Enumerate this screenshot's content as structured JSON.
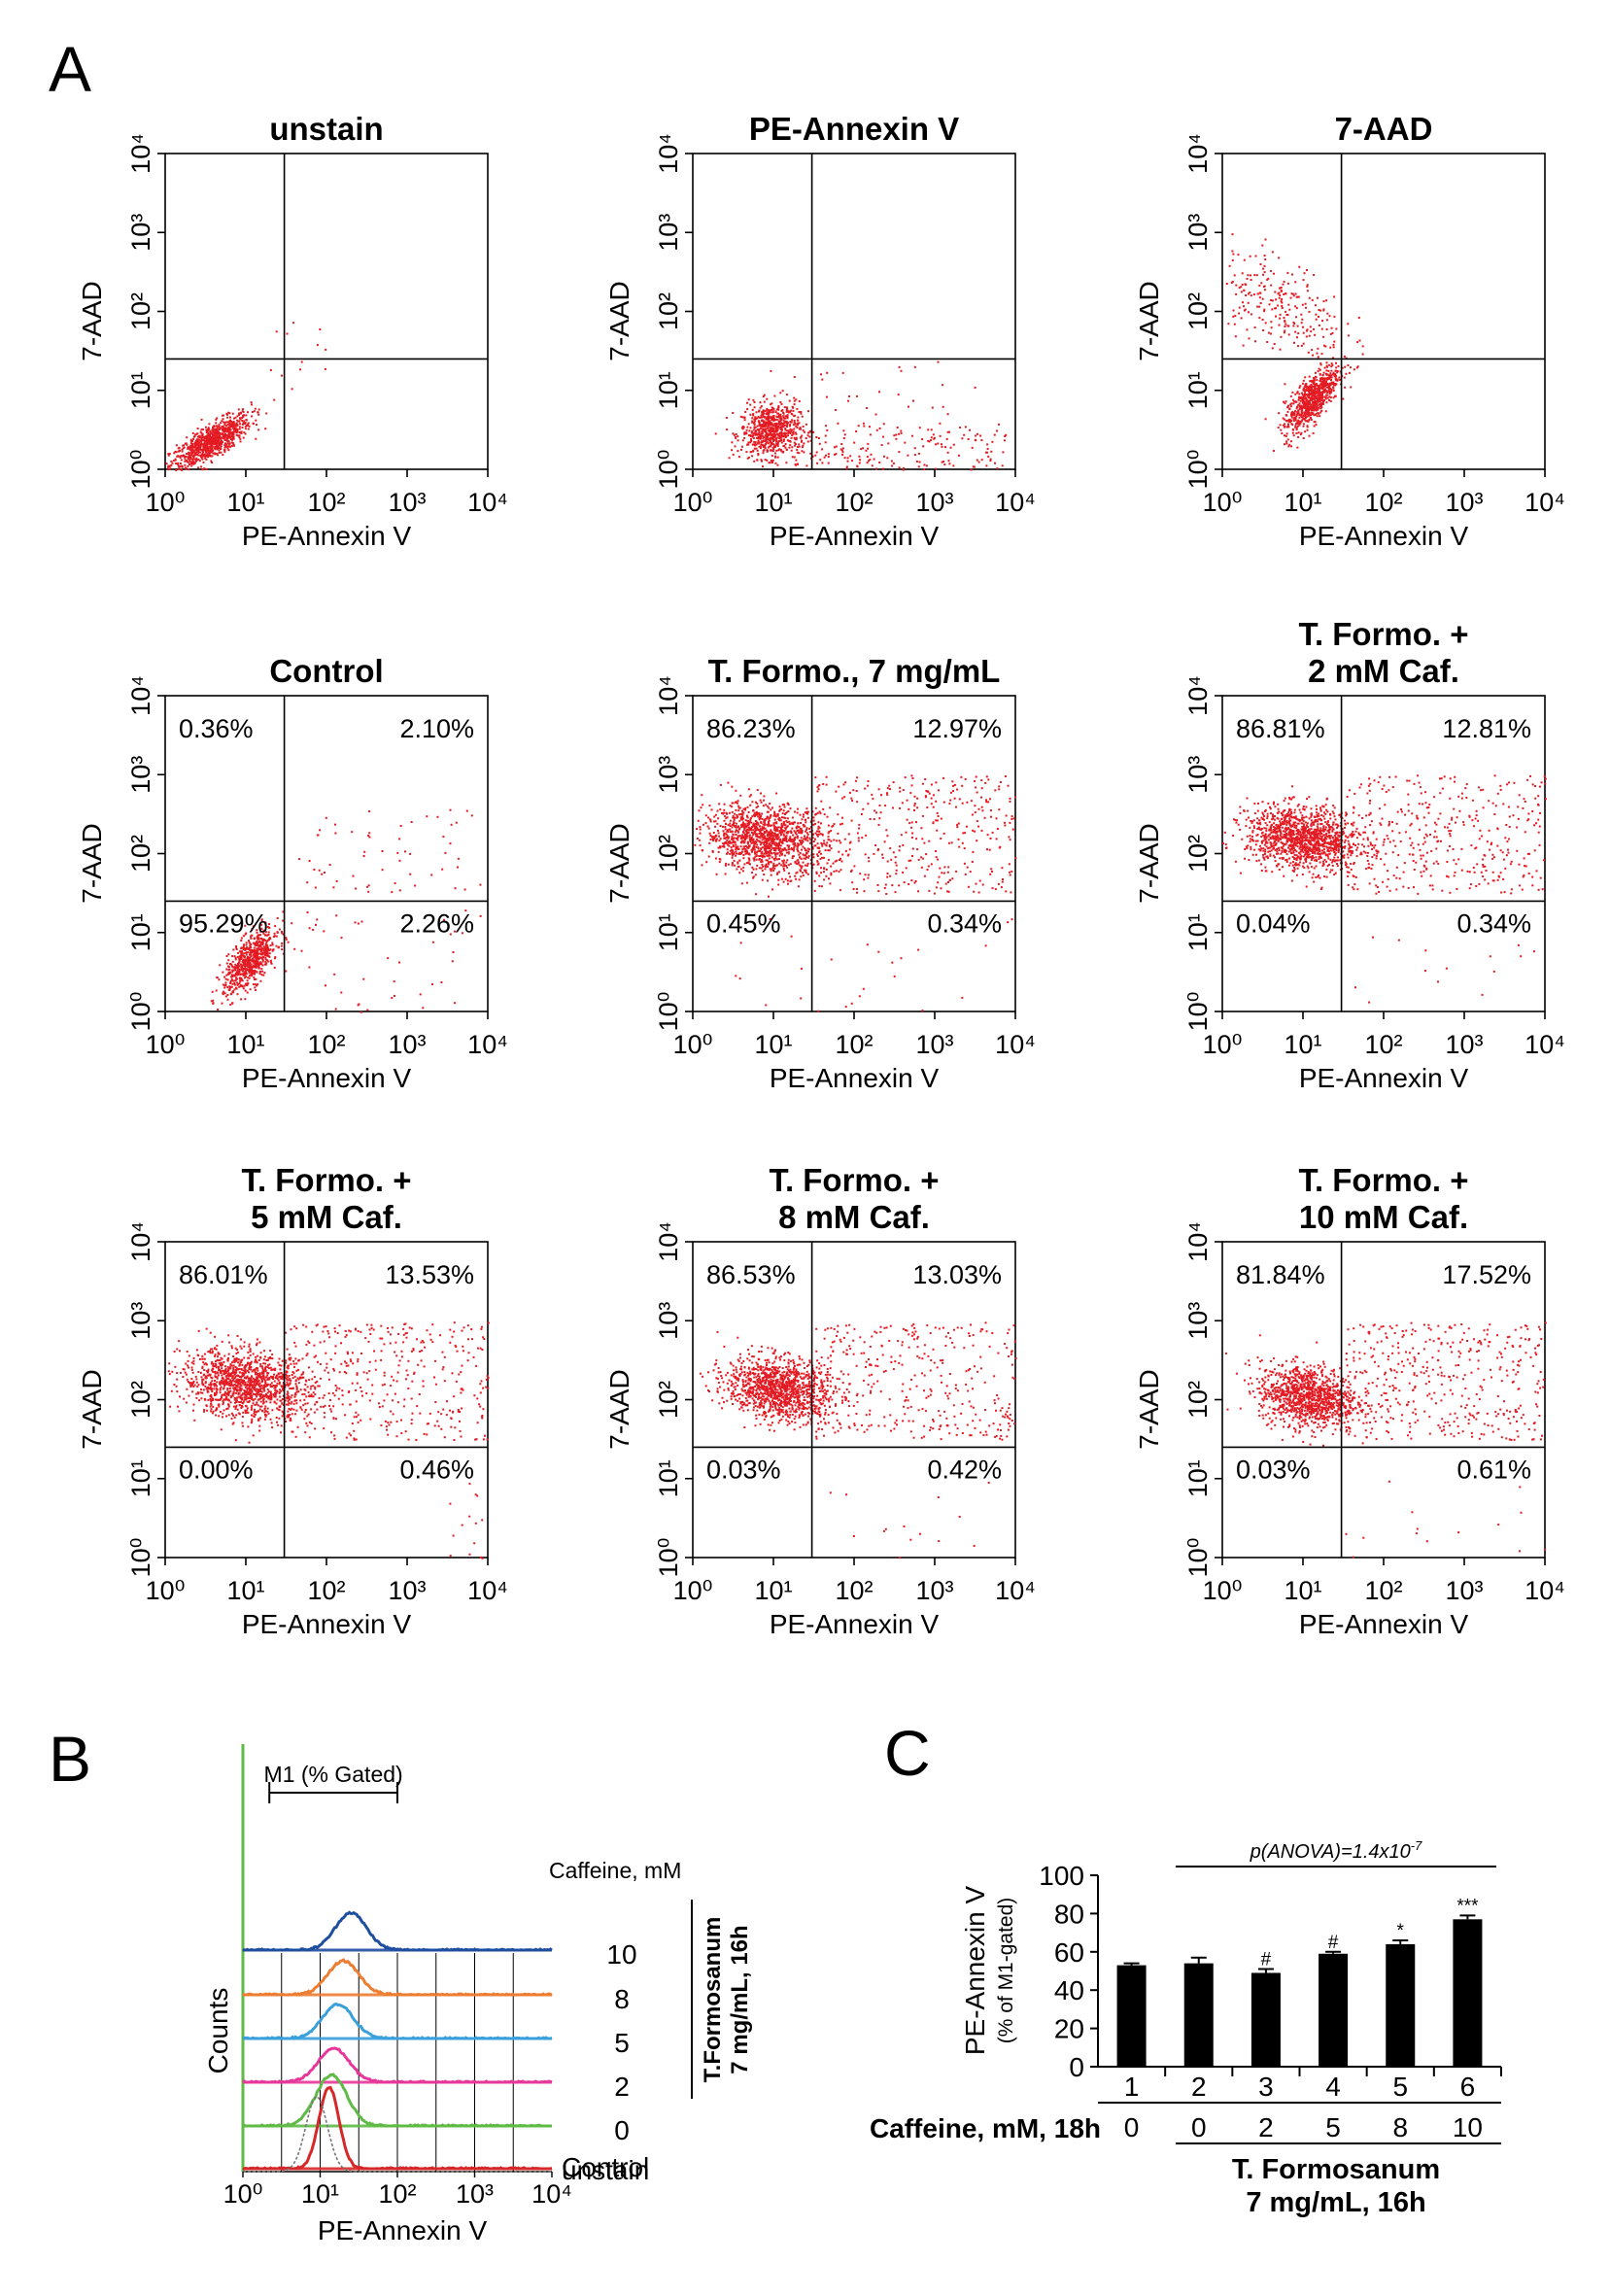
{
  "figure": {
    "panel_letters": [
      "A",
      "B",
      "C"
    ]
  },
  "chart_data": [
    {
      "type": "scatter",
      "panel": "A",
      "plot_type": "flow cytometry dot plots (3 x 3 grid)",
      "xlabel": "PE-Annexin V",
      "ylabel": "7-AAD",
      "x_scale": "log",
      "y_scale": "log",
      "xlim": [
        1,
        10000
      ],
      "ylim": [
        1,
        10000
      ],
      "tick_labels": [
        "10⁰",
        "10¹",
        "10²",
        "10³",
        "10⁴"
      ],
      "gate": {
        "x": 30,
        "y": 25
      },
      "point_color": "#e31b23",
      "subplots": [
        {
          "title": [
            "unstain"
          ],
          "quadrants": null,
          "clusters": [
            {
              "cx": 0.55,
              "cy": 0.35,
              "sx": 0.25,
              "sy": 0.18,
              "rho": 0.8,
              "n": 900
            }
          ],
          "sparse": [
            {
              "x": [
                1.0,
                2.0
              ],
              "y": [
                1.0,
                2.0
              ],
              "n": 12
            }
          ]
        },
        {
          "title": [
            "PE-Annexin V"
          ],
          "quadrants": null,
          "clusters": [
            {
              "cx": 0.95,
              "cy": 0.5,
              "sx": 0.18,
              "sy": 0.17,
              "rho": 0.1,
              "n": 700
            }
          ],
          "sparse": [
            {
              "x": [
                1.2,
                3.9
              ],
              "y": [
                0.0,
                0.6
              ],
              "n": 200
            },
            {
              "x": [
                0.9,
                3.5
              ],
              "y": [
                0.7,
                1.4
              ],
              "n": 30
            }
          ]
        },
        {
          "title": [
            "7-AAD"
          ],
          "quadrants": null,
          "clusters": [
            {
              "cx": 1.1,
              "cy": 0.9,
              "sx": 0.17,
              "sy": 0.22,
              "rho": 0.75,
              "n": 750
            },
            {
              "cx": 0.7,
              "cy": 2.1,
              "sx": 0.4,
              "sy": 0.35,
              "rho": -0.5,
              "n": 260
            }
          ],
          "sparse": []
        },
        {
          "title": [
            "Control"
          ],
          "quadrants": [
            "0.36%",
            "2.10%",
            "95.29%",
            "2.26%"
          ],
          "clusters": [
            {
              "cx": 1.05,
              "cy": 0.65,
              "sx": 0.17,
              "sy": 0.2,
              "rho": 0.65,
              "n": 700
            }
          ],
          "sparse": [
            {
              "x": [
                1.6,
                3.9
              ],
              "y": [
                1.5,
                2.6
              ],
              "n": 60
            },
            {
              "x": [
                1.6,
                3.9
              ],
              "y": [
                0.0,
                1.3
              ],
              "n": 40
            }
          ]
        },
        {
          "title": [
            "T. Formo., 7 mg/mL"
          ],
          "quadrants": [
            "86.23%",
            "12.97%",
            "0.45%",
            "0.34%"
          ],
          "clusters": [
            {
              "cx": 0.9,
              "cy": 2.2,
              "sx": 0.38,
              "sy": 0.22,
              "rho": -0.2,
              "n": 1300
            }
          ],
          "sparse": [
            {
              "x": [
                1.5,
                4.0
              ],
              "y": [
                1.5,
                3.0
              ],
              "n": 380
            },
            {
              "x": [
                0.5,
                4.0
              ],
              "y": [
                0.0,
                1.3
              ],
              "n": 25
            }
          ]
        },
        {
          "title": [
            "T. Formo. +",
            "2 mM Caf."
          ],
          "quadrants": [
            "86.81%",
            "12.81%",
            "0.04%",
            "0.34%"
          ],
          "clusters": [
            {
              "cx": 1.0,
              "cy": 2.2,
              "sx": 0.35,
              "sy": 0.2,
              "rho": -0.2,
              "n": 1300
            }
          ],
          "sparse": [
            {
              "x": [
                1.5,
                4.0
              ],
              "y": [
                1.5,
                3.0
              ],
              "n": 380
            },
            {
              "x": [
                1.5,
                4.0
              ],
              "y": [
                0.0,
                1.0
              ],
              "n": 14
            }
          ]
        },
        {
          "title": [
            "T. Formo. +",
            "5 mM Caf."
          ],
          "quadrants": [
            "86.01%",
            "13.53%",
            "0.00%",
            "0.46%"
          ],
          "clusters": [
            {
              "cx": 1.0,
              "cy": 2.2,
              "sx": 0.4,
              "sy": 0.22,
              "rho": -0.2,
              "n": 1300
            }
          ],
          "sparse": [
            {
              "x": [
                1.5,
                4.0
              ],
              "y": [
                1.5,
                3.0
              ],
              "n": 380
            },
            {
              "x": [
                3.5,
                4.0
              ],
              "y": [
                0.0,
                1.0
              ],
              "n": 14
            }
          ]
        },
        {
          "title": [
            "T. Formo. +",
            "8 mM Caf."
          ],
          "quadrants": [
            "86.53%",
            "13.03%",
            "0.03%",
            "0.42%"
          ],
          "clusters": [
            {
              "cx": 1.05,
              "cy": 2.15,
              "sx": 0.32,
              "sy": 0.2,
              "rho": -0.2,
              "n": 1200
            }
          ],
          "sparse": [
            {
              "x": [
                1.5,
                4.0
              ],
              "y": [
                1.5,
                3.0
              ],
              "n": 360
            },
            {
              "x": [
                1.5,
                4.0
              ],
              "y": [
                0.0,
                1.0
              ],
              "n": 14
            }
          ]
        },
        {
          "title": [
            "T. Formo. +",
            "10 mM Caf."
          ],
          "quadrants": [
            "81.84%",
            "17.52%",
            "0.03%",
            "0.61%"
          ],
          "clusters": [
            {
              "cx": 1.05,
              "cy": 2.05,
              "sx": 0.3,
              "sy": 0.2,
              "rho": -0.2,
              "n": 1100
            }
          ],
          "sparse": [
            {
              "x": [
                1.5,
                4.0
              ],
              "y": [
                1.5,
                3.0
              ],
              "n": 420
            },
            {
              "x": [
                1.5,
                4.0
              ],
              "y": [
                0.0,
                1.0
              ],
              "n": 14
            }
          ]
        }
      ]
    },
    {
      "type": "line",
      "panel": "B",
      "plot_type": "overlaid flow histograms",
      "xlabel": "PE-Annexin V",
      "ylabel": "Counts",
      "x_scale": "log",
      "xlim": [
        1,
        10000
      ],
      "tick_labels": [
        "10⁰",
        "10¹",
        "10²",
        "10³",
        "10⁴"
      ],
      "gate_label": "M1 (% Gated)",
      "gate_range": [
        2.2,
        100
      ],
      "caffeine_header": "Caffeine, mM",
      "treatment_label": [
        "T.Formosanum",
        "7 mg/mL, 16h"
      ],
      "series": [
        {
          "name": "10",
          "color": "#1f4e9e",
          "peak_x": 25,
          "peak_height": 0.55
        },
        {
          "name": "8",
          "color": "#ed7d31",
          "peak_x": 20,
          "peak_height": 0.5
        },
        {
          "name": "5",
          "color": "#39a0dc",
          "peak_x": 17,
          "peak_height": 0.5
        },
        {
          "name": "2",
          "color": "#e6389a",
          "peak_x": 15,
          "peak_height": 0.5
        },
        {
          "name": "0",
          "color": "#5fba46",
          "peak_x": 14,
          "peak_height": 0.75
        },
        {
          "name": "Control",
          "color": "#d62828",
          "peak_x": 13,
          "peak_height": 1.2
        },
        {
          "name": "unstain",
          "color": "#777777",
          "peak_x": 9,
          "peak_height": 1.1
        }
      ]
    },
    {
      "type": "bar",
      "panel": "C",
      "ylabel": "PE-Annexin V",
      "ylabel2": "(% of M1-gated)",
      "ylim": [
        0,
        100
      ],
      "yticks": [
        "0",
        "20",
        "40",
        "60",
        "80",
        "100"
      ],
      "categories": [
        "1",
        "2",
        "3",
        "4",
        "5",
        "6"
      ],
      "values": [
        53,
        54,
        49,
        59,
        64,
        77
      ],
      "errors": [
        1,
        3,
        2,
        1,
        2,
        2
      ],
      "significance": [
        "",
        "",
        "#",
        "#",
        "*",
        "***"
      ],
      "caffeine_label": "Caffeine, mM, 18h",
      "caffeine_values": [
        "0",
        "0",
        "2",
        "5",
        "8",
        "10"
      ],
      "treatment_label": [
        "T. Formosanum",
        "7 mg/mL, 16h"
      ],
      "anova_label": "p(ANOVA)=1.4x10",
      "anova_exponent": "-7",
      "bar_color": "#000000"
    }
  ]
}
